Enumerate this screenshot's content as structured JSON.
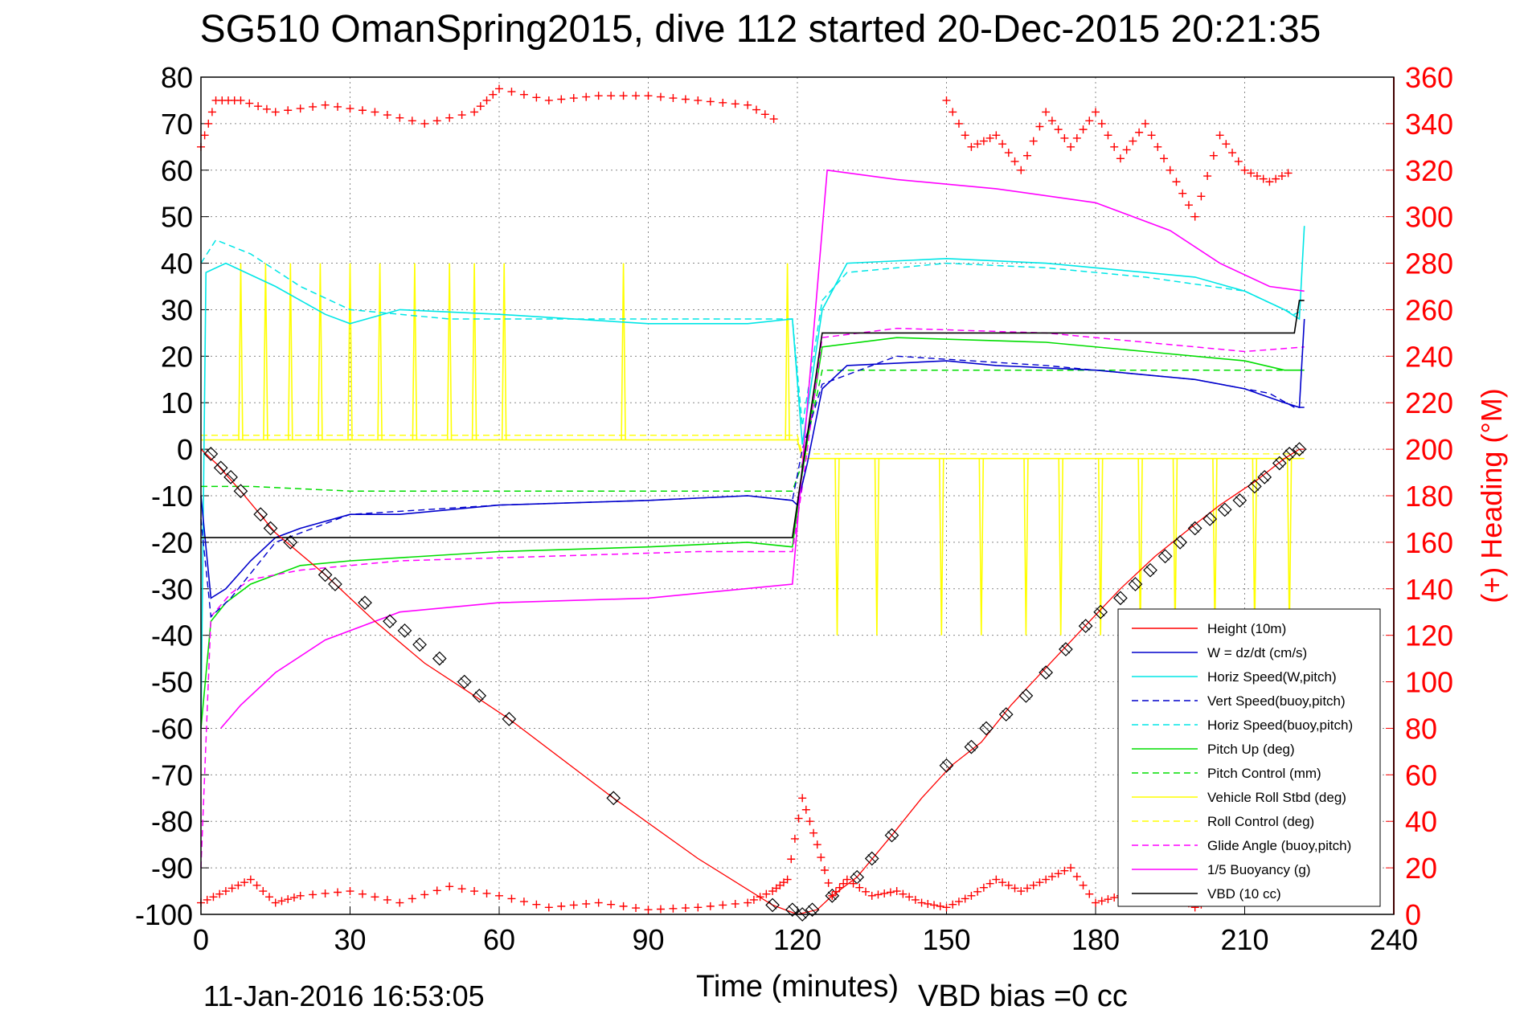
{
  "chart_data": {
    "type": "line",
    "title": "SG510 OmanSpring2015, dive 112 started 20-Dec-2015 20:21:35",
    "xlabel": "Time (minutes)",
    "ylabel_right": "(+) Heading (°M)",
    "footer_left": "11-Jan-2016 16:53:05",
    "footer_right": "VBD bias =0 cc",
    "xlim": [
      0,
      240
    ],
    "ylim": [
      -100,
      80
    ],
    "ylim_right": [
      0,
      360
    ],
    "x_ticks": [
      "0",
      "30",
      "60",
      "90",
      "120",
      "150",
      "180",
      "210",
      "240"
    ],
    "y_ticks": [
      "80",
      "70",
      "60",
      "50",
      "40",
      "30",
      "20",
      "10",
      "0",
      "-10",
      "-20",
      "-30",
      "-40",
      "-50",
      "-60",
      "-70",
      "-80",
      "-90",
      "-100"
    ],
    "y_ticks_right": [
      "360",
      "340",
      "320",
      "300",
      "280",
      "260",
      "240",
      "220",
      "200",
      "180",
      "160",
      "140",
      "120",
      "100",
      "80",
      "60",
      "40",
      "20",
      "0"
    ],
    "grid": true,
    "legend_position": "bottom-right",
    "colors": {
      "height": "#ff0000",
      "w": "#0000cc",
      "horiz": "#00e6e6",
      "pitch": "#00dd00",
      "roll": "#ffff00",
      "glide": "#ff00ff",
      "buoyancy": "#ff00ff",
      "vbd": "#000000",
      "heading": "#ff0000",
      "marker": "#000000"
    },
    "legend": [
      {
        "label": "Height (10m)",
        "color": "#ff0000",
        "dash": false
      },
      {
        "label": "W = dz/dt (cm/s)",
        "color": "#0000cc",
        "dash": false
      },
      {
        "label": "Horiz Speed(W,pitch)",
        "color": "#00e6e6",
        "dash": false
      },
      {
        "label": "Vert Speed(buoy,pitch)",
        "color": "#0000cc",
        "dash": true
      },
      {
        "label": "Horiz Speed(buoy,pitch)",
        "color": "#00e6e6",
        "dash": true
      },
      {
        "label": "Pitch Up (deg)",
        "color": "#00dd00",
        "dash": false
      },
      {
        "label": "Pitch Control (mm)",
        "color": "#00dd00",
        "dash": true
      },
      {
        "label": "Vehicle Roll Stbd (deg)",
        "color": "#ffff00",
        "dash": false
      },
      {
        "label": "Roll Control (deg)",
        "color": "#ffff00",
        "dash": true
      },
      {
        "label": "Glide Angle (buoy,pitch)",
        "color": "#ff00ff",
        "dash": true
      },
      {
        "label": "1/5 Buoyancy (g)",
        "color": "#ff00ff",
        "dash": false
      },
      {
        "label": "VBD (10 cc)",
        "color": "#000000",
        "dash": false
      }
    ],
    "series": {
      "height": [
        [
          0,
          0
        ],
        [
          3,
          -3
        ],
        [
          8,
          -9
        ],
        [
          15,
          -18
        ],
        [
          25,
          -27
        ],
        [
          35,
          -37
        ],
        [
          45,
          -46
        ],
        [
          55,
          -53
        ],
        [
          62,
          -58
        ],
        [
          83,
          -75
        ],
        [
          100,
          -88
        ],
        [
          115,
          -98
        ],
        [
          120,
          -100
        ],
        [
          124,
          -99
        ],
        [
          127,
          -96
        ],
        [
          132,
          -92
        ],
        [
          139,
          -83
        ],
        [
          145,
          -75
        ],
        [
          151,
          -68
        ],
        [
          157,
          -63
        ],
        [
          163,
          -55
        ],
        [
          170,
          -47
        ],
        [
          177,
          -39
        ],
        [
          185,
          -30
        ],
        [
          192,
          -23
        ],
        [
          199,
          -17
        ],
        [
          205,
          -12
        ],
        [
          212,
          -7
        ],
        [
          218,
          -2
        ],
        [
          221,
          0
        ],
        [
          222,
          0
        ]
      ],
      "w": [
        [
          0,
          -10
        ],
        [
          2,
          -32
        ],
        [
          5,
          -30
        ],
        [
          10,
          -24
        ],
        [
          15,
          -19
        ],
        [
          20,
          -17
        ],
        [
          30,
          -14
        ],
        [
          40,
          -14
        ],
        [
          60,
          -12
        ],
        [
          90,
          -11
        ],
        [
          110,
          -10
        ],
        [
          119,
          -11
        ],
        [
          120,
          -12
        ],
        [
          122,
          -3
        ],
        [
          125,
          13
        ],
        [
          130,
          18
        ],
        [
          150,
          19
        ],
        [
          160,
          18
        ],
        [
          180,
          17
        ],
        [
          200,
          15
        ],
        [
          210,
          13
        ],
        [
          218,
          10
        ],
        [
          221,
          9
        ],
        [
          222,
          28
        ]
      ],
      "horiz_w": [
        [
          0,
          -60
        ],
        [
          1,
          38
        ],
        [
          5,
          40
        ],
        [
          15,
          35
        ],
        [
          25,
          29
        ],
        [
          30,
          27
        ],
        [
          40,
          30
        ],
        [
          60,
          29
        ],
        [
          90,
          27
        ],
        [
          110,
          27
        ],
        [
          119,
          28
        ],
        [
          121,
          1
        ],
        [
          125,
          30
        ],
        [
          130,
          40
        ],
        [
          150,
          41
        ],
        [
          170,
          40
        ],
        [
          190,
          38
        ],
        [
          200,
          37
        ],
        [
          210,
          34
        ],
        [
          218,
          30
        ],
        [
          221,
          28
        ],
        [
          222,
          48
        ]
      ],
      "vert_buoy": [
        [
          0,
          -15
        ],
        [
          2,
          -36
        ],
        [
          6,
          -32
        ],
        [
          15,
          -20
        ],
        [
          30,
          -14
        ],
        [
          60,
          -12
        ],
        [
          90,
          -11
        ],
        [
          110,
          -10
        ],
        [
          119,
          -11
        ],
        [
          121,
          0
        ],
        [
          125,
          14
        ],
        [
          140,
          20
        ],
        [
          170,
          18
        ],
        [
          200,
          15
        ],
        [
          215,
          12
        ],
        [
          220,
          9
        ],
        [
          222,
          9
        ]
      ],
      "horiz_buoy": [
        [
          0,
          40
        ],
        [
          3,
          45
        ],
        [
          10,
          42
        ],
        [
          20,
          35
        ],
        [
          30,
          30
        ],
        [
          50,
          28
        ],
        [
          80,
          28
        ],
        [
          110,
          28
        ],
        [
          119,
          28
        ],
        [
          121,
          5
        ],
        [
          125,
          32
        ],
        [
          130,
          38
        ],
        [
          150,
          40
        ],
        [
          170,
          39
        ],
        [
          190,
          37
        ],
        [
          210,
          34
        ],
        [
          220,
          29
        ],
        [
          222,
          30
        ]
      ],
      "pitch": [
        [
          0,
          -60
        ],
        [
          2,
          -37
        ],
        [
          5,
          -33
        ],
        [
          10,
          -29
        ],
        [
          20,
          -25
        ],
        [
          30,
          -24
        ],
        [
          60,
          -22
        ],
        [
          90,
          -21
        ],
        [
          110,
          -20
        ],
        [
          119,
          -21
        ],
        [
          121,
          -5
        ],
        [
          125,
          22
        ],
        [
          140,
          24
        ],
        [
          170,
          23
        ],
        [
          190,
          21
        ],
        [
          210,
          19
        ],
        [
          218,
          17
        ],
        [
          222,
          17
        ]
      ],
      "pitch_ctrl": [
        [
          0,
          -8
        ],
        [
          10,
          -8
        ],
        [
          30,
          -9
        ],
        [
          60,
          -9
        ],
        [
          90,
          -9
        ],
        [
          110,
          -9
        ],
        [
          119,
          -9
        ],
        [
          121,
          -3
        ],
        [
          125,
          17
        ],
        [
          150,
          17
        ],
        [
          180,
          17
        ],
        [
          210,
          17
        ],
        [
          222,
          17
        ]
      ],
      "glide": [
        [
          0,
          -90
        ],
        [
          2,
          -36
        ],
        [
          6,
          -31
        ],
        [
          10,
          -28
        ],
        [
          20,
          -26
        ],
        [
          40,
          -24
        ],
        [
          70,
          -23
        ],
        [
          100,
          -22
        ],
        [
          119,
          -22
        ],
        [
          121,
          -8
        ],
        [
          125,
          24
        ],
        [
          140,
          26
        ],
        [
          170,
          25
        ],
        [
          190,
          23
        ],
        [
          210,
          21
        ],
        [
          222,
          22
        ]
      ],
      "buoyancy": [
        [
          4,
          -60
        ],
        [
          8,
          -55
        ],
        [
          15,
          -48
        ],
        [
          25,
          -41
        ],
        [
          40,
          -35
        ],
        [
          60,
          -33
        ],
        [
          90,
          -32
        ],
        [
          119,
          -29
        ],
        [
          126,
          60
        ],
        [
          140,
          58
        ],
        [
          160,
          56
        ],
        [
          180,
          53
        ],
        [
          195,
          47
        ],
        [
          205,
          40
        ],
        [
          215,
          35
        ],
        [
          222,
          34
        ]
      ],
      "vbd": [
        [
          0,
          -19
        ],
        [
          1,
          -19
        ],
        [
          20,
          -19
        ],
        [
          60,
          -19
        ],
        [
          100,
          -19
        ],
        [
          119,
          -19
        ],
        [
          125,
          25
        ],
        [
          150,
          25
        ],
        [
          180,
          25
        ],
        [
          210,
          25
        ],
        [
          220,
          25
        ],
        [
          221,
          32
        ],
        [
          222,
          32
        ]
      ],
      "roll_base": [
        [
          0,
          2
        ],
        [
          120,
          2
        ],
        [
          121,
          -2
        ],
        [
          222,
          -2
        ]
      ],
      "roll_spikes": [
        [
          8,
          40
        ],
        [
          13,
          40
        ],
        [
          18,
          40
        ],
        [
          24,
          40
        ],
        [
          30,
          40
        ],
        [
          36,
          40
        ],
        [
          43,
          40
        ],
        [
          50,
          40
        ],
        [
          55,
          40
        ],
        [
          61,
          40
        ],
        [
          85,
          40
        ],
        [
          118,
          40
        ],
        [
          128,
          -40
        ],
        [
          136,
          -40
        ],
        [
          149,
          -40
        ],
        [
          157,
          -40
        ],
        [
          166,
          -40
        ],
        [
          173,
          -40
        ],
        [
          181,
          -40
        ],
        [
          189,
          -40
        ],
        [
          196,
          -40
        ],
        [
          204,
          -40
        ],
        [
          212,
          -40
        ],
        [
          219,
          -40
        ]
      ],
      "heading_top": [
        [
          0,
          330
        ],
        [
          3,
          350
        ],
        [
          8,
          350
        ],
        [
          15,
          345
        ],
        [
          25,
          348
        ],
        [
          35,
          345
        ],
        [
          45,
          340
        ],
        [
          55,
          345
        ],
        [
          60,
          355
        ],
        [
          70,
          350
        ],
        [
          80,
          352
        ],
        [
          90,
          352
        ],
        [
          100,
          350
        ],
        [
          110,
          348
        ],
        [
          117,
          340
        ]
      ],
      "heading_tail": [
        [
          150,
          350
        ],
        [
          155,
          330
        ],
        [
          160,
          335
        ],
        [
          165,
          320
        ],
        [
          170,
          345
        ],
        [
          175,
          330
        ],
        [
          180,
          345
        ],
        [
          185,
          325
        ],
        [
          190,
          340
        ],
        [
          195,
          320
        ],
        [
          200,
          300
        ],
        [
          205,
          335
        ],
        [
          210,
          320
        ],
        [
          215,
          315
        ],
        [
          220,
          320
        ]
      ],
      "heading_bottom": [
        [
          0,
          5
        ],
        [
          5,
          10
        ],
        [
          10,
          15
        ],
        [
          15,
          5
        ],
        [
          20,
          8
        ],
        [
          30,
          10
        ],
        [
          40,
          5
        ],
        [
          50,
          12
        ],
        [
          60,
          8
        ],
        [
          70,
          3
        ],
        [
          80,
          5
        ],
        [
          90,
          2
        ],
        [
          100,
          3
        ],
        [
          110,
          5
        ],
        [
          115,
          10
        ],
        [
          118,
          15
        ],
        [
          121,
          50
        ],
        [
          124,
          30
        ],
        [
          127,
          8
        ],
        [
          130,
          15
        ],
        [
          135,
          8
        ],
        [
          140,
          10
        ],
        [
          145,
          5
        ],
        [
          150,
          3
        ],
        [
          155,
          8
        ],
        [
          160,
          15
        ],
        [
          165,
          10
        ],
        [
          170,
          15
        ],
        [
          175,
          20
        ],
        [
          180,
          5
        ],
        [
          185,
          8
        ],
        [
          190,
          5
        ],
        [
          195,
          10
        ],
        [
          200,
          3
        ],
        [
          205,
          8
        ],
        [
          210,
          5
        ],
        [
          215,
          10
        ],
        [
          220,
          5
        ]
      ],
      "height_markers": [
        [
          2,
          -1
        ],
        [
          4,
          -4
        ],
        [
          6,
          -6
        ],
        [
          8,
          -9
        ],
        [
          12,
          -14
        ],
        [
          14,
          -17
        ],
        [
          18,
          -20
        ],
        [
          25,
          -27
        ],
        [
          27,
          -29
        ],
        [
          33,
          -33
        ],
        [
          38,
          -37
        ],
        [
          41,
          -39
        ],
        [
          44,
          -42
        ],
        [
          48,
          -45
        ],
        [
          53,
          -50
        ],
        [
          56,
          -53
        ],
        [
          62,
          -58
        ],
        [
          83,
          -75
        ],
        [
          115,
          -98
        ],
        [
          119,
          -99
        ],
        [
          121,
          -100
        ],
        [
          123,
          -99
        ],
        [
          127,
          -96
        ],
        [
          132,
          -92
        ],
        [
          135,
          -88
        ],
        [
          139,
          -83
        ],
        [
          150,
          -68
        ],
        [
          155,
          -64
        ],
        [
          158,
          -60
        ],
        [
          162,
          -57
        ],
        [
          166,
          -53
        ],
        [
          170,
          -48
        ],
        [
          174,
          -43
        ],
        [
          178,
          -38
        ],
        [
          181,
          -35
        ],
        [
          185,
          -32
        ],
        [
          188,
          -29
        ],
        [
          191,
          -26
        ],
        [
          194,
          -23
        ],
        [
          197,
          -20
        ],
        [
          200,
          -17
        ],
        [
          203,
          -15
        ],
        [
          206,
          -13
        ],
        [
          209,
          -11
        ],
        [
          212,
          -8
        ],
        [
          214,
          -6
        ],
        [
          217,
          -3
        ],
        [
          219,
          -1
        ],
        [
          221,
          0
        ]
      ]
    }
  }
}
